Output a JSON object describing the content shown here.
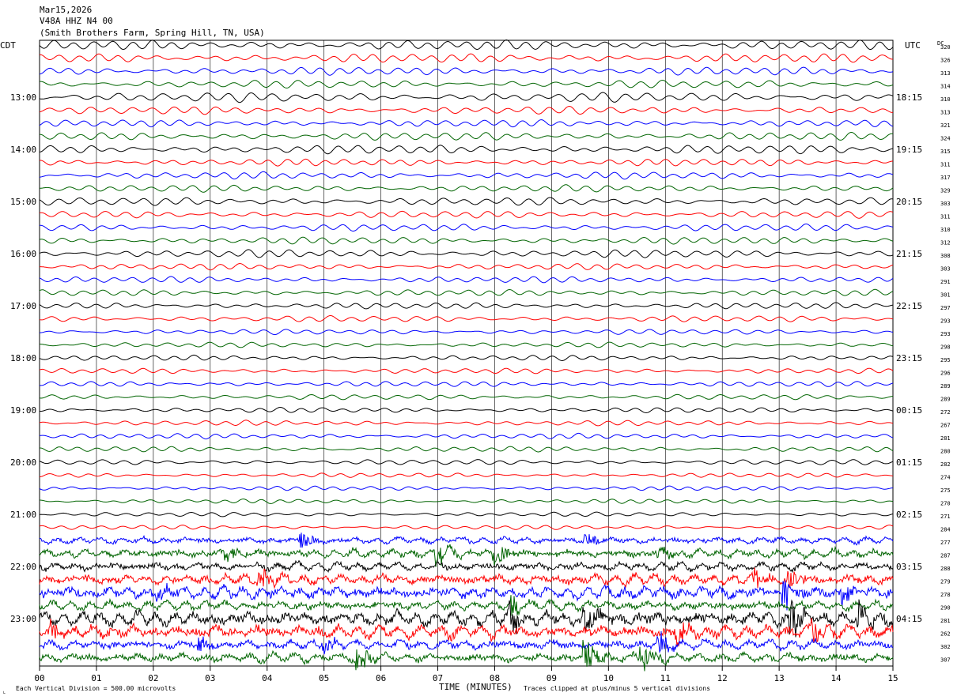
{
  "header": {
    "date": "Mar15,2026",
    "station": "V48A HHZ N4 00",
    "location": "(Smith Brothers Farm, Spring Hill, TN, USA)"
  },
  "left_zone_label": "CDT",
  "right_zone_label": "UTC",
  "dc_label": "DC",
  "footer": {
    "scale_text": "Each Vertical Division =  500.00 microvolts",
    "xlabel": "TIME (MINUTES)",
    "clip_text": "Traces clipped at plus/minus 5 vertical divisions"
  },
  "colors": {
    "trace_cycle": [
      "#000000",
      "#ff0000",
      "#0000ff",
      "#006400"
    ],
    "grid": "#000000"
  },
  "chart_data": {
    "type": "line",
    "subtype": "helicorder",
    "x_range_minutes": [
      0,
      15
    ],
    "x_tick_labels": [
      "00",
      "01",
      "02",
      "03",
      "04",
      "05",
      "06",
      "07",
      "08",
      "09",
      "10",
      "11",
      "12",
      "13",
      "14",
      "15"
    ],
    "rows": 48,
    "minutes_per_row": 15,
    "left_hour_labels": [
      "13:00",
      "14:00",
      "15:00",
      "16:00",
      "17:00",
      "18:00",
      "19:00",
      "20:00",
      "21:00",
      "22:00",
      "23:00"
    ],
    "right_hour_labels": [
      "18:15",
      "19:15",
      "20:15",
      "21:15",
      "22:15",
      "23:15",
      "00:15",
      "01:15",
      "02:15",
      "03:15",
      "04:15"
    ],
    "hour_label_rows": [
      4,
      8,
      12,
      16,
      20,
      24,
      28,
      32,
      36,
      40,
      44
    ],
    "dc_offsets": [
      "320",
      "326",
      "313",
      "314",
      "310",
      "313",
      "321",
      "324",
      "315",
      "311",
      "317",
      "329",
      "303",
      "311",
      "310",
      "312",
      "308",
      "303",
      "291",
      "301",
      "297",
      "293",
      "293",
      "298",
      "295",
      "296",
      "289",
      "289",
      "272",
      "267",
      "281",
      "280",
      "282",
      "274",
      "275",
      "270",
      "271",
      "284",
      "277",
      "287",
      "288",
      "279",
      "278",
      "290",
      "281",
      "262",
      "302",
      "307"
    ],
    "row_amplitude": [
      0.55,
      0.5,
      0.45,
      0.45,
      0.55,
      0.45,
      0.4,
      0.45,
      0.5,
      0.4,
      0.4,
      0.4,
      0.45,
      0.4,
      0.4,
      0.4,
      0.45,
      0.35,
      0.35,
      0.35,
      0.35,
      0.35,
      0.3,
      0.3,
      0.3,
      0.3,
      0.3,
      0.3,
      0.3,
      0.3,
      0.3,
      0.3,
      0.3,
      0.25,
      0.25,
      0.25,
      0.25,
      0.25,
      0.35,
      0.45,
      0.45,
      0.55,
      0.65,
      0.5,
      0.75,
      0.7,
      0.5,
      0.5
    ],
    "events": [
      {
        "row": 38,
        "minute": 4.6,
        "amp": 2.0
      },
      {
        "row": 38,
        "minute": 9.6,
        "amp": 1.5
      },
      {
        "row": 39,
        "minute": 3.3,
        "amp": 1.5
      },
      {
        "row": 39,
        "minute": 7.0,
        "amp": 3.0
      },
      {
        "row": 39,
        "minute": 8.0,
        "amp": 1.8
      },
      {
        "row": 39,
        "minute": 10.9,
        "amp": 1.5
      },
      {
        "row": 41,
        "minute": 3.9,
        "amp": 1.8
      },
      {
        "row": 41,
        "minute": 12.6,
        "amp": 1.5
      },
      {
        "row": 41,
        "minute": 13.2,
        "amp": 1.8
      },
      {
        "row": 42,
        "minute": 2.1,
        "amp": 1.5
      },
      {
        "row": 42,
        "minute": 13.1,
        "amp": 3.0
      },
      {
        "row": 42,
        "minute": 14.1,
        "amp": 2.2
      },
      {
        "row": 43,
        "minute": 8.3,
        "amp": 2.2
      },
      {
        "row": 44,
        "minute": 8.3,
        "amp": 3.0
      },
      {
        "row": 44,
        "minute": 9.6,
        "amp": 2.2
      },
      {
        "row": 44,
        "minute": 13.2,
        "amp": 3.5
      },
      {
        "row": 44,
        "minute": 14.4,
        "amp": 2.2
      },
      {
        "row": 45,
        "minute": 0.2,
        "amp": 1.8
      },
      {
        "row": 45,
        "minute": 11.2,
        "amp": 4.0
      },
      {
        "row": 45,
        "minute": 13.6,
        "amp": 2.2
      },
      {
        "row": 46,
        "minute": 2.8,
        "amp": 1.5
      },
      {
        "row": 46,
        "minute": 5.0,
        "amp": 1.5
      },
      {
        "row": 46,
        "minute": 10.9,
        "amp": 2.2
      },
      {
        "row": 47,
        "minute": 5.6,
        "amp": 2.5
      },
      {
        "row": 47,
        "minute": 9.6,
        "amp": 3.0
      },
      {
        "row": 47,
        "minute": 10.6,
        "amp": 2.0
      }
    ]
  }
}
